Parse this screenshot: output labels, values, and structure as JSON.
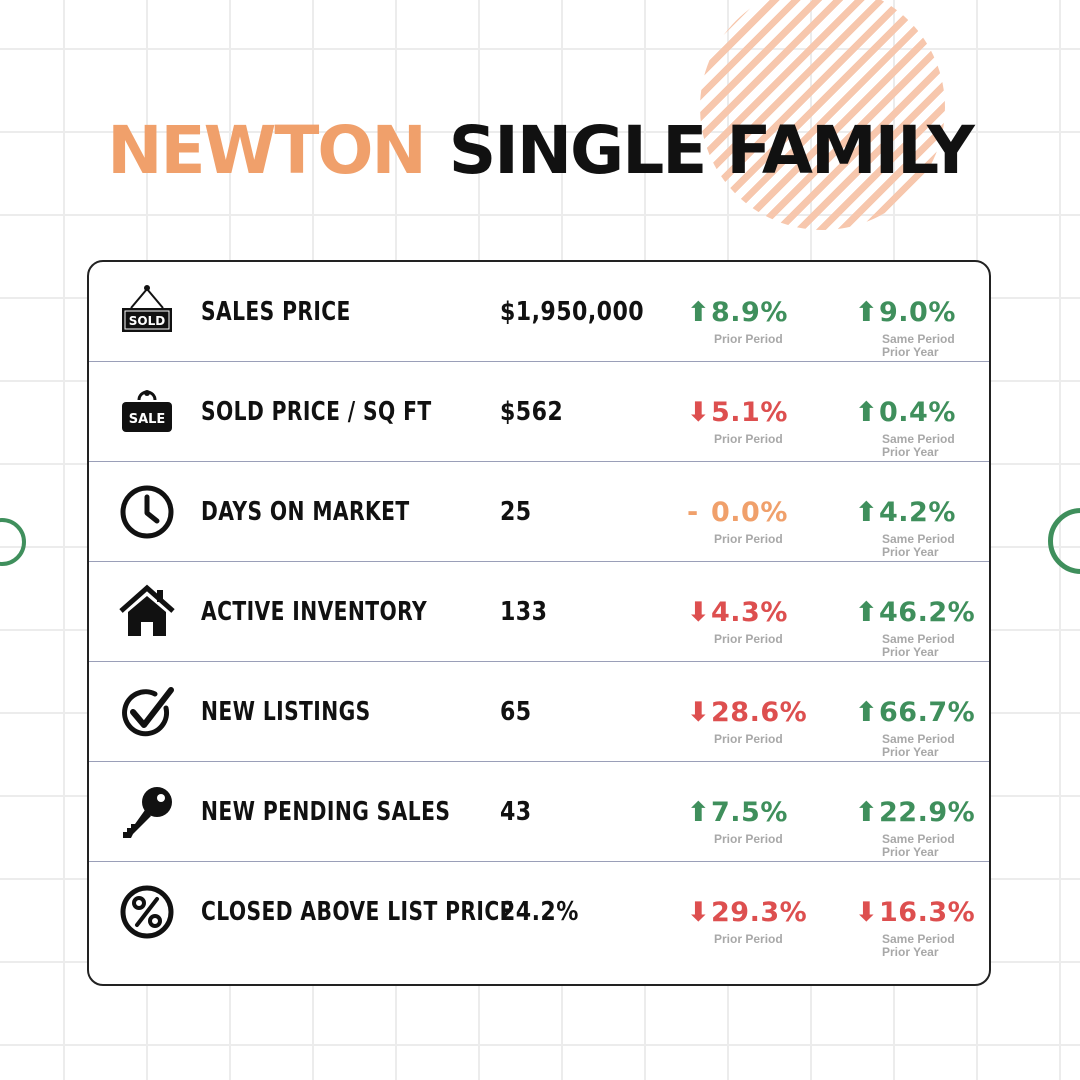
{
  "title": {
    "city": "NEWTON",
    "type": "SINGLE FAMILY"
  },
  "colors": {
    "accent_orange": "#f0a06b",
    "up_green": "#3f8f5c",
    "down_red": "#dd4f4f",
    "flat_orange": "#f0a06b"
  },
  "labels": {
    "prior_period": "Prior Period",
    "same_period_l1": "Same Period",
    "same_period_l2": "Prior Year"
  },
  "rows": [
    {
      "icon": "sold-sign-icon",
      "label": "SALES PRICE",
      "value": "$1,950,000",
      "prior": {
        "dir": "up",
        "arrow": "⬆",
        "value": "8.9%"
      },
      "year": {
        "dir": "up",
        "arrow": "⬆",
        "value": "9.0%"
      }
    },
    {
      "icon": "sale-sign-icon",
      "label": "SOLD PRICE / SQ FT",
      "value": "$562",
      "prior": {
        "dir": "down",
        "arrow": "⬇",
        "value": "5.1%"
      },
      "year": {
        "dir": "up",
        "arrow": "⬆",
        "value": "0.4%"
      }
    },
    {
      "icon": "clock-icon",
      "label": "DAYS ON MARKET",
      "value": "25",
      "prior": {
        "dir": "flat",
        "arrow": "-",
        "value": "0.0%"
      },
      "year": {
        "dir": "up",
        "arrow": "⬆",
        "value": "4.2%"
      }
    },
    {
      "icon": "house-icon",
      "label": "ACTIVE INVENTORY",
      "value": "133",
      "prior": {
        "dir": "down",
        "arrow": "⬇",
        "value": "4.3%"
      },
      "year": {
        "dir": "up",
        "arrow": "⬆",
        "value": "46.2%"
      }
    },
    {
      "icon": "checkmark-circle-icon",
      "label": "NEW LISTINGS",
      "value": "65",
      "prior": {
        "dir": "down",
        "arrow": "⬇",
        "value": "28.6%"
      },
      "year": {
        "dir": "up",
        "arrow": "⬆",
        "value": "66.7%"
      }
    },
    {
      "icon": "key-icon",
      "label": "NEW PENDING SALES",
      "value": "43",
      "prior": {
        "dir": "up",
        "arrow": "⬆",
        "value": "7.5%"
      },
      "year": {
        "dir": "up",
        "arrow": "⬆",
        "value": "22.9%"
      }
    },
    {
      "icon": "percent-circle-icon",
      "label": "CLOSED ABOVE LIST PRICE",
      "value": "24.2%",
      "prior": {
        "dir": "down",
        "arrow": "⬇",
        "value": "29.3%"
      },
      "year": {
        "dir": "down",
        "arrow": "⬇",
        "value": "16.3%"
      }
    }
  ]
}
